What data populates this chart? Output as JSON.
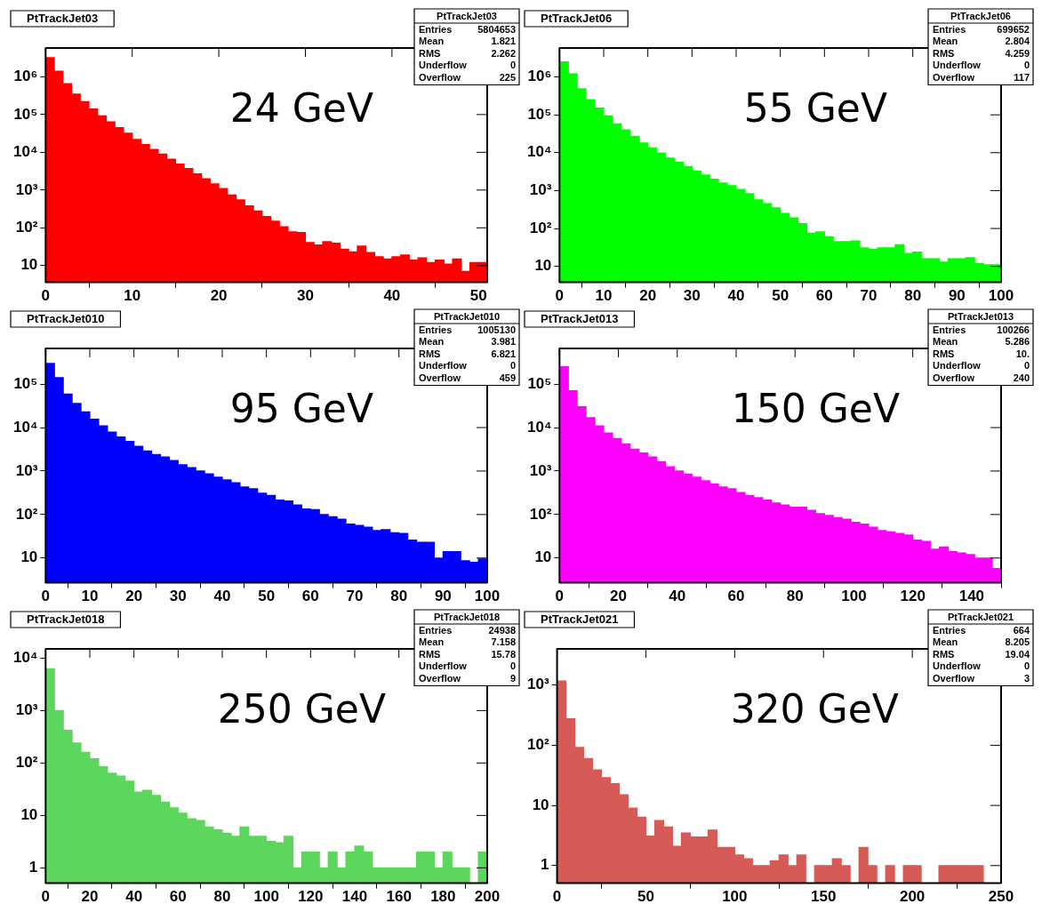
{
  "chart_data": [
    {
      "type": "histogram",
      "title": "PtTrackJet03",
      "color": "#ff0000",
      "log": true,
      "xlim": [
        0,
        51
      ],
      "xticks": [
        0,
        10,
        20,
        30,
        40,
        50
      ],
      "ylim": [
        3.6,
        5800000
      ],
      "yticks": [
        {
          "value": 10,
          "label": "10"
        },
        {
          "value": 100,
          "label": "10²"
        },
        {
          "value": 1000,
          "label": "10³"
        },
        {
          "value": 10000,
          "label": "10⁴"
        },
        {
          "value": 100000,
          "label": "10⁵"
        },
        {
          "value": 1000000,
          "label": "10⁶"
        }
      ],
      "bins": [
        0,
        1,
        2,
        3,
        4,
        5,
        6,
        7,
        8,
        9,
        10,
        11,
        12,
        13,
        14,
        15,
        16,
        17,
        18,
        19,
        20,
        21,
        22,
        23,
        24,
        25,
        26,
        27,
        28,
        29,
        30,
        31,
        32,
        33,
        34,
        35,
        36,
        37,
        38,
        39,
        40,
        41,
        42,
        43,
        44,
        45,
        46,
        47,
        48,
        49,
        50,
        51
      ],
      "values": [
        3200000,
        1400000,
        660000,
        350000,
        220000,
        140000,
        93000,
        64000,
        45000,
        32000,
        22000,
        16000,
        12000,
        9000,
        6600,
        4900,
        3700,
        2700,
        2000,
        1450,
        1100,
        740,
        550,
        380,
        280,
        200,
        150,
        107,
        78,
        75,
        41,
        35,
        43,
        39,
        27,
        23,
        33,
        22,
        17,
        15,
        17,
        19,
        14,
        16,
        12,
        14,
        11,
        15,
        7,
        12,
        12
      ],
      "annotations": [
        "24 GeV",
        "PtTrackJet03",
        "Entries 5804653",
        "Mean 1.821",
        "RMS 2.262",
        "Underflow 0",
        "Overflow 225"
      ]
    },
    {
      "type": "histogram",
      "title": "PtTrackJet06",
      "color": "#00ff00",
      "log": true,
      "xlim": [
        0,
        100
      ],
      "xticks": [
        0,
        10,
        20,
        30,
        40,
        50,
        60,
        70,
        80,
        90,
        100
      ],
      "ylim": [
        3.8,
        5800000
      ],
      "yticks": [
        {
          "value": 10,
          "label": "10"
        },
        {
          "value": 100,
          "label": "10²"
        },
        {
          "value": 1000,
          "label": "10³"
        },
        {
          "value": 10000,
          "label": "10⁴"
        },
        {
          "value": 100000,
          "label": "10⁵"
        },
        {
          "value": 1000000,
          "label": "10⁶"
        }
      ],
      "bins": [
        0,
        2,
        4,
        6,
        8,
        10,
        12,
        14,
        16,
        18,
        20,
        22,
        24,
        26,
        28,
        30,
        32,
        34,
        36,
        38,
        40,
        42,
        44,
        46,
        48,
        50,
        52,
        54,
        56,
        58,
        60,
        62,
        64,
        66,
        68,
        70,
        72,
        74,
        76,
        78,
        80,
        82,
        84,
        86,
        88,
        90,
        92,
        94,
        96,
        98,
        100
      ],
      "values": [
        2500000,
        1200000,
        490000,
        250000,
        150000,
        93000,
        58000,
        40000,
        27000,
        18000,
        13500,
        9800,
        7200,
        5600,
        4300,
        3300,
        2600,
        2000,
        1600,
        1350,
        1070,
        830,
        570,
        450,
        350,
        250,
        190,
        135,
        74,
        81,
        60,
        45,
        45,
        47,
        31,
        28,
        31,
        31,
        37,
        22,
        24,
        16,
        16,
        13,
        16,
        16,
        17,
        12,
        11,
        11
      ],
      "annotations": [
        "55 GeV",
        "PtTrackJet06",
        "Entries 699652",
        "Mean 2.804",
        "RMS 4.259",
        "Underflow 0",
        "Overflow 117"
      ]
    },
    {
      "type": "histogram",
      "title": "PtTrackJet010",
      "color": "#0000ff",
      "log": true,
      "xlim": [
        0,
        100
      ],
      "xticks": [
        0,
        10,
        20,
        30,
        40,
        50,
        60,
        70,
        80,
        90,
        100
      ],
      "ylim": [
        2.7,
        660000
      ],
      "yticks": [
        {
          "value": 10,
          "label": "10"
        },
        {
          "value": 100,
          "label": "10²"
        },
        {
          "value": 1000,
          "label": "10³"
        },
        {
          "value": 10000,
          "label": "10⁴"
        },
        {
          "value": 100000,
          "label": "10⁵"
        }
      ],
      "bins": [
        0,
        2,
        4,
        6,
        8,
        10,
        12,
        14,
        16,
        18,
        20,
        22,
        24,
        26,
        28,
        30,
        32,
        34,
        36,
        38,
        40,
        42,
        44,
        46,
        48,
        50,
        52,
        54,
        56,
        58,
        60,
        62,
        64,
        66,
        68,
        70,
        72,
        74,
        76,
        78,
        80,
        82,
        84,
        86,
        88,
        90,
        92,
        94,
        96,
        98,
        100
      ],
      "values": [
        300000,
        140000,
        59000,
        36000,
        23000,
        15500,
        11000,
        7900,
        6100,
        4800,
        3700,
        2900,
        2400,
        2100,
        1750,
        1400,
        1200,
        1000,
        860,
        720,
        630,
        540,
        430,
        390,
        310,
        275,
        215,
        205,
        165,
        135,
        130,
        100,
        89,
        78,
        60,
        56,
        51,
        43,
        45,
        38,
        37,
        26,
        23,
        23,
        10,
        14,
        14,
        8.7,
        8,
        9.5
      ],
      "annotations": [
        "95 GeV",
        "PtTrackJet010",
        "Entries 1005130",
        "Mean 3.981",
        "RMS 6.821",
        "Underflow 0",
        "Overflow 459"
      ]
    },
    {
      "type": "histogram",
      "title": "PtTrackJet013",
      "color": "#ff00ff",
      "log": true,
      "xlim": [
        0,
        150
      ],
      "xticks": [
        0,
        20,
        40,
        60,
        80,
        100,
        120,
        140
      ],
      "ylim": [
        2.7,
        660000
      ],
      "yticks": [
        {
          "value": 10,
          "label": "10"
        },
        {
          "value": 100,
          "label": "10²"
        },
        {
          "value": 1000,
          "label": "10³"
        },
        {
          "value": 10000,
          "label": "10⁴"
        },
        {
          "value": 100000,
          "label": "10⁵"
        }
      ],
      "bins": [
        0,
        3,
        6,
        9,
        12,
        15,
        18,
        21,
        24,
        27,
        30,
        33,
        36,
        39,
        42,
        45,
        48,
        51,
        54,
        57,
        60,
        63,
        66,
        69,
        72,
        75,
        78,
        81,
        84,
        87,
        90,
        93,
        96,
        99,
        102,
        105,
        108,
        111,
        114,
        117,
        120,
        123,
        126,
        129,
        132,
        135,
        138,
        141,
        144,
        147,
        150
      ],
      "values": [
        250000,
        70000,
        30000,
        17000,
        11000,
        7500,
        5600,
        4200,
        3200,
        2600,
        2100,
        1650,
        1250,
        1000,
        850,
        720,
        600,
        510,
        430,
        390,
        320,
        275,
        245,
        215,
        185,
        165,
        148,
        148,
        125,
        105,
        95,
        85,
        78,
        66,
        60,
        51,
        43,
        40,
        37,
        34,
        26,
        24,
        16,
        18,
        14,
        13,
        12,
        10,
        10,
        5.7
      ],
      "annotations": [
        "150 GeV",
        "PtTrackJet013",
        "Entries 100266",
        "Mean 5.286",
        "RMS 10.",
        "Underflow 0",
        "Overflow 240"
      ]
    },
    {
      "type": "histogram",
      "title": "PtTrackJet018",
      "color": "#5cd65c",
      "log": true,
      "xlim": [
        0,
        200
      ],
      "xticks": [
        0,
        20,
        40,
        60,
        80,
        100,
        120,
        140,
        160,
        180,
        200
      ],
      "ylim": [
        0.51,
        15000
      ],
      "yticks": [
        {
          "value": 1,
          "label": "1"
        },
        {
          "value": 10,
          "label": "10"
        },
        {
          "value": 100,
          "label": "10²"
        },
        {
          "value": 1000,
          "label": "10³"
        },
        {
          "value": 10000,
          "label": "10⁴"
        }
      ],
      "bins": [
        0,
        4,
        8,
        12,
        16,
        20,
        24,
        28,
        32,
        36,
        40,
        44,
        48,
        52,
        56,
        60,
        64,
        68,
        72,
        76,
        80,
        84,
        88,
        92,
        96,
        100,
        104,
        108,
        112,
        116,
        120,
        124,
        128,
        132,
        136,
        140,
        144,
        148,
        152,
        156,
        160,
        164,
        168,
        172,
        176,
        180,
        184,
        188,
        192,
        196,
        200
      ],
      "values": [
        6300,
        1000,
        420,
        240,
        160,
        120,
        85,
        64,
        56,
        45,
        28,
        30,
        24,
        18,
        14,
        11,
        8.6,
        8,
        6,
        5.3,
        4.6,
        4,
        6,
        4,
        4,
        3.2,
        3,
        4,
        1,
        2,
        2,
        1,
        2,
        1,
        2,
        2.6,
        2,
        1,
        1,
        1,
        1,
        1,
        2,
        2,
        1,
        2,
        1,
        1,
        null,
        2
      ],
      "annotations": [
        "250 GeV",
        "PtTrackJet018",
        "Entries 24938",
        "Mean 7.158",
        "RMS 15.78",
        "Underflow 0",
        "Overflow 9"
      ]
    },
    {
      "type": "histogram",
      "title": "PtTrackJet021",
      "color": "#d65a55",
      "log": true,
      "xlim": [
        0,
        250
      ],
      "xticks": [
        0,
        50,
        100,
        150,
        200,
        250
      ],
      "ylim": [
        0.51,
        4000
      ],
      "yticks": [
        {
          "value": 1,
          "label": "1"
        },
        {
          "value": 10,
          "label": "10"
        },
        {
          "value": 100,
          "label": "10²"
        },
        {
          "value": 1000,
          "label": "10³"
        }
      ],
      "bins": [
        0,
        5,
        10,
        15,
        20,
        25,
        30,
        35,
        40,
        45,
        50,
        55,
        60,
        65,
        70,
        75,
        80,
        85,
        90,
        95,
        100,
        105,
        110,
        115,
        120,
        125,
        130,
        135,
        140,
        145,
        150,
        155,
        160,
        165,
        170,
        175,
        180,
        185,
        190,
        195,
        200,
        205,
        210,
        215,
        220,
        225,
        230,
        235,
        240,
        245,
        250
      ],
      "values": [
        1170,
        275,
        92,
        60,
        39,
        29,
        23,
        15,
        9,
        6.4,
        3.1,
        5.6,
        4.4,
        2.1,
        3.5,
        3,
        3,
        3.9,
        2,
        2,
        1.5,
        1.3,
        1,
        1,
        1.2,
        1.5,
        1,
        1.5,
        null,
        1,
        1,
        1.3,
        1,
        null,
        2,
        1,
        null,
        1,
        null,
        1,
        1,
        null,
        null,
        1,
        1,
        1,
        1,
        1,
        null,
        null
      ],
      "annotations": [
        "320 GeV",
        "PtTrackJet021",
        "Entries 664",
        "Mean 8.205",
        "RMS 19.04",
        "Underflow 0",
        "Overflow 3"
      ]
    }
  ]
}
